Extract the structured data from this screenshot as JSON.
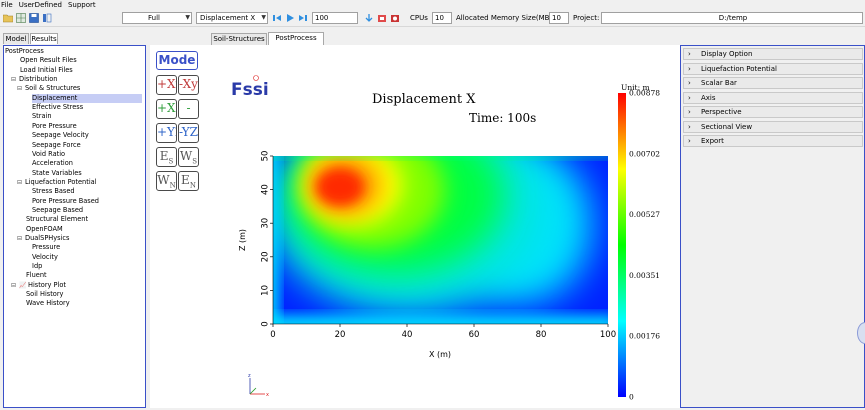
{
  "menubar": {
    "items": [
      "File",
      "UserDefined",
      "Support"
    ]
  },
  "toolbar": {
    "view_mode": "Full",
    "variable": "Displacement X",
    "frame": "100",
    "cpus_label": "CPUs",
    "cpus_value": "10",
    "memory_label": "Allocated Memory Size(MB):",
    "memory_value": "10",
    "project_label": "Project:",
    "project_path": "D:/temp"
  },
  "left_tabs": [
    "Model",
    "Results"
  ],
  "center_tabs": [
    "Soil-Structures",
    "PostProcess"
  ],
  "tree": [
    {
      "label": "PostProcess",
      "indent": 0,
      "exp": ""
    },
    {
      "label": "Open Result Files",
      "indent": 1,
      "exp": ""
    },
    {
      "label": "Load Initial Files",
      "indent": 1,
      "exp": ""
    },
    {
      "label": "Distribution",
      "indent": 1,
      "exp": "−"
    },
    {
      "label": "Soil & Structures",
      "indent": 2,
      "exp": "−"
    },
    {
      "label": "Displacement",
      "indent": 3,
      "exp": "",
      "selected": true
    },
    {
      "label": "Effective Stress",
      "indent": 3,
      "exp": ""
    },
    {
      "label": "Strain",
      "indent": 3,
      "exp": ""
    },
    {
      "label": "Pore Pressure",
      "indent": 3,
      "exp": ""
    },
    {
      "label": "Seepage Velocity",
      "indent": 3,
      "exp": ""
    },
    {
      "label": "Seepage Force",
      "indent": 3,
      "exp": ""
    },
    {
      "label": "Void Ratio",
      "indent": 3,
      "exp": ""
    },
    {
      "label": "Acceleration",
      "indent": 3,
      "exp": ""
    },
    {
      "label": "State Variables",
      "indent": 3,
      "exp": ""
    },
    {
      "label": "Liquefaction Potential",
      "indent": 2,
      "exp": "−"
    },
    {
      "label": "Stress Based",
      "indent": 3,
      "exp": ""
    },
    {
      "label": "Pore Pressure Based",
      "indent": 3,
      "exp": ""
    },
    {
      "label": "Seepage Based",
      "indent": 3,
      "exp": ""
    },
    {
      "label": "Structural Element",
      "indent": 2,
      "exp": ""
    },
    {
      "label": "OpenFOAM",
      "indent": 2,
      "exp": ""
    },
    {
      "label": "DualSPHysics",
      "indent": 2,
      "exp": "−"
    },
    {
      "label": "Pressure",
      "indent": 3,
      "exp": ""
    },
    {
      "label": "Velocity",
      "indent": 3,
      "exp": ""
    },
    {
      "label": "Idp",
      "indent": 3,
      "exp": ""
    },
    {
      "label": "Fluent",
      "indent": 2,
      "exp": ""
    },
    {
      "label": "History Plot",
      "indent": 1,
      "exp": "−",
      "icon": true
    },
    {
      "label": "Soil History",
      "indent": 2,
      "exp": ""
    },
    {
      "label": "Wave History",
      "indent": 2,
      "exp": ""
    }
  ],
  "tool_buttons": {
    "mode": "Mode",
    "b1": "+Xy",
    "b2": "-Xy",
    "b3": "+XZ",
    "b4": "-XZ",
    "b5": "+YZ",
    "b6": "-YZ",
    "b7": "E",
    "b7s": "S",
    "b8": "W",
    "b8s": "S",
    "b9": "W",
    "b9s": "N",
    "b10": "E",
    "b10s": "N"
  },
  "logo": "Fssi",
  "plot": {
    "title": "Displacement X",
    "time": "Time: 100s",
    "unit": "Unit:  m",
    "xlabel": "X (m)",
    "ylabel": "Z (m)",
    "colorbar_labels": [
      "0.00878",
      "0.00702",
      "0.00527",
      "0.00351",
      "0.00176",
      "0"
    ]
  },
  "chart_data": {
    "type": "heatmap",
    "title": "Displacement X",
    "xlabel": "X (m)",
    "ylabel": "Z (m)",
    "xlim": [
      0,
      100
    ],
    "ylim": [
      0,
      50
    ],
    "x_ticks": [
      "0",
      "20",
      "40",
      "60",
      "80",
      "100"
    ],
    "y_ticks": [
      "0",
      "10",
      "20",
      "30",
      "40",
      "50"
    ],
    "colorbar": {
      "min": 0,
      "max": 0.00878,
      "ticks": [
        0.00878,
        0.00702,
        0.00527,
        0.00351,
        0.00176,
        0
      ]
    },
    "peak": {
      "x": 20,
      "z": 38,
      "value": 0.00878
    }
  },
  "right_panel": {
    "sections": [
      "Display Option",
      "Liquefaction Potential",
      "Scalar Bar",
      "Axis",
      "Perspective",
      "Sectional View",
      "Export"
    ]
  },
  "colors": {
    "panel_border": "#3a50c8",
    "selection": "#c6cdf5",
    "mode_button": "#3a50c8"
  }
}
